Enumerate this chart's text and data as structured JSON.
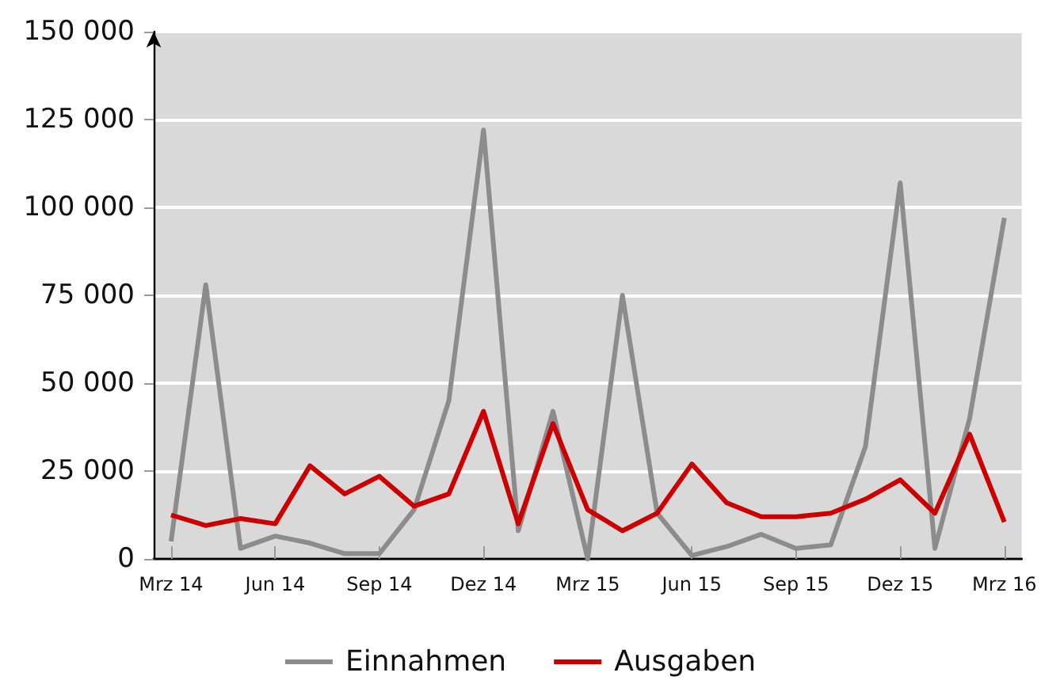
{
  "chart_data": {
    "type": "line",
    "categories": [
      "Mrz 14",
      null,
      null,
      "Jun 14",
      null,
      null,
      "Sep 14",
      null,
      null,
      "Dez 14",
      null,
      null,
      "Mrz 15",
      null,
      null,
      "Jun 15",
      null,
      null,
      "Sep 15",
      null,
      null,
      "Dez 15",
      null,
      null,
      "Mrz 16"
    ],
    "series": [
      {
        "name": "Einnahmen",
        "color": "#8c8c8c",
        "values": [
          5000,
          78000,
          3000,
          6500,
          4500,
          1500,
          1500,
          14000,
          45000,
          122000,
          8000,
          42000,
          0,
          75000,
          13000,
          1000,
          3500,
          7000,
          3000,
          4000,
          32000,
          107000,
          3000,
          40000,
          97000
        ]
      },
      {
        "name": "Ausgaben",
        "color": "#cc0000",
        "values": [
          12500,
          9500,
          11500,
          10000,
          26500,
          18500,
          23500,
          15000,
          18500,
          42000,
          10000,
          38500,
          14000,
          8000,
          13000,
          27000,
          16000,
          12000,
          12000,
          13000,
          17000,
          22500,
          13000,
          35500,
          10500
        ]
      }
    ],
    "ylim": [
      0,
      150000
    ],
    "yticks": [
      {
        "value": 0,
        "label": "0"
      },
      {
        "value": 25000,
        "label": "25 000"
      },
      {
        "value": 50000,
        "label": "50 000"
      },
      {
        "value": 75000,
        "label": "75 000"
      },
      {
        "value": 100000,
        "label": "100 000"
      },
      {
        "value": 125000,
        "label": "125 000"
      },
      {
        "value": 150000,
        "label": "150 000"
      }
    ],
    "grid": "y",
    "legend": "bottom",
    "marker": "none",
    "line_style": "solid"
  }
}
